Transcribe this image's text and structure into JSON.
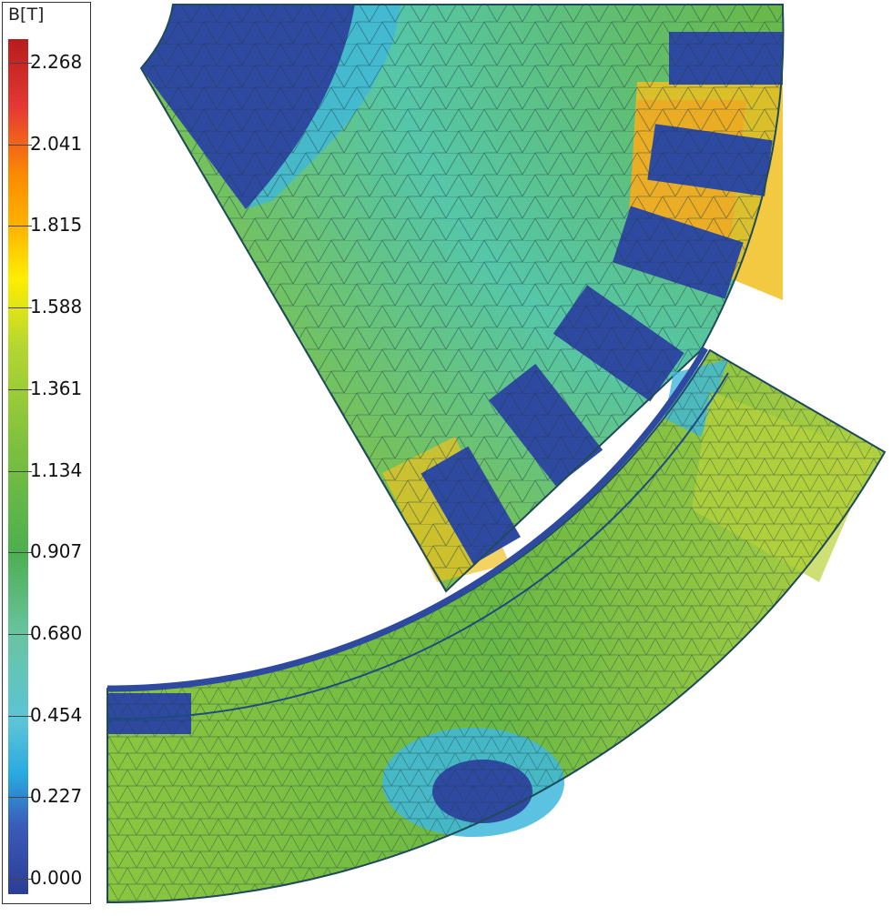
{
  "legend": {
    "title": "B[T]",
    "ticks": [
      "2.268",
      "2.041",
      "1.815",
      "1.588",
      "1.361",
      "1.134",
      "0.907",
      "0.680",
      "0.454",
      "0.227",
      "0.000"
    ],
    "colorscale": [
      "#b71c1c",
      "#e53935",
      "#fb8c00",
      "#ffb300",
      "#ffee00",
      "#b4d632",
      "#7cbf3f",
      "#4caf50",
      "#69c4a3",
      "#5bc4d8",
      "#29a9e0",
      "#3a5bb8",
      "#2c3e96"
    ]
  },
  "colors": {
    "low": "#2e4aa0",
    "cyan": "#3fb7dc",
    "teal": "#55c6a8",
    "green": "#6ab845",
    "lime": "#a8d040",
    "yellow": "#f0d820",
    "orange": "#f5a020",
    "red": "#e03020",
    "mesh": "#1b3a4a"
  }
}
